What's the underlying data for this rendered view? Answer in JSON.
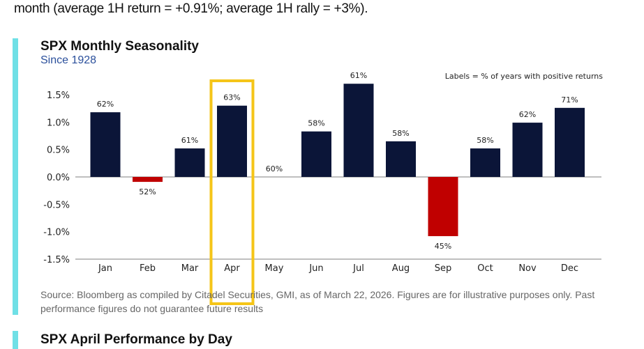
{
  "intro_text": "month (average 1H return = +0.91%; average 1H rally = +3%).",
  "colors": {
    "accent": "#6fe0e6",
    "positive": "#0b1538",
    "negative": "#c00000",
    "highlight": "#f5c518"
  },
  "source": "Source: Bloomberg as compiled by Citadel Securities, GMI, as of March 22, 2026. Figures are for illustrative purposes only. Past performance figures do not guarantee future results",
  "next_section_title": "SPX April Performance by Day",
  "chart_data": {
    "type": "bar",
    "title": "SPX Monthly Seasonality",
    "subtitle": "Since 1928",
    "annotation": "Labels = % of years with positive returns",
    "categories": [
      "Jan",
      "Feb",
      "Mar",
      "Apr",
      "May",
      "Jun",
      "Jul",
      "Aug",
      "Sep",
      "Oct",
      "Nov",
      "Dec"
    ],
    "values": [
      1.18,
      -0.09,
      0.52,
      1.3,
      0.0,
      0.83,
      1.7,
      0.65,
      -1.08,
      0.52,
      0.99,
      1.26
    ],
    "data_labels": [
      "62%",
      "52%",
      "61%",
      "63%",
      "60%",
      "58%",
      "61%",
      "58%",
      "45%",
      "58%",
      "62%",
      "71%"
    ],
    "highlighted_category": "Apr",
    "ylim": [
      -1.5,
      1.5
    ],
    "yticks": [
      1.5,
      1.0,
      0.5,
      0.0,
      -0.5,
      -1.0,
      -1.5
    ],
    "ytick_labels": [
      "1.5%",
      "1.0%",
      "0.5%",
      "0.0%",
      "-0.5%",
      "-1.0%",
      "-1.5%"
    ],
    "xlabel": "",
    "ylabel": "",
    "grid": false
  }
}
